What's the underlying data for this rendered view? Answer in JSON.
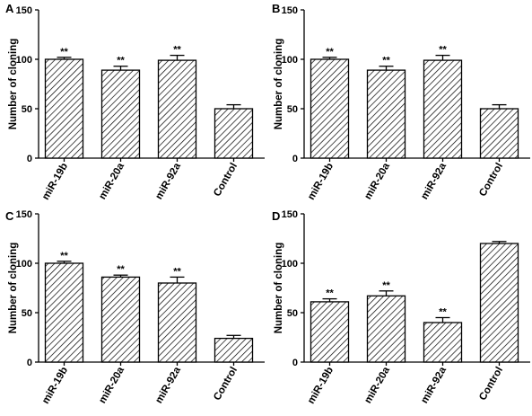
{
  "chart_data": [
    {
      "type": "bar",
      "panel": "A",
      "ylabel": "Number of cloning",
      "ylim": [
        0,
        150
      ],
      "yticks": [
        0,
        50,
        100,
        150
      ],
      "categories": [
        "miR-19b",
        "miR-20a",
        "miR-92a",
        "Control"
      ],
      "values": [
        100,
        89,
        99,
        50
      ],
      "errors": [
        2,
        4,
        5,
        4
      ],
      "significance": [
        "**",
        "**",
        "**",
        ""
      ]
    },
    {
      "type": "bar",
      "panel": "B",
      "ylabel": "Number of cloning",
      "ylim": [
        0,
        150
      ],
      "yticks": [
        0,
        50,
        100,
        150
      ],
      "categories": [
        "miR-19b",
        "miR-20a",
        "miR-92a",
        "Control"
      ],
      "values": [
        100,
        89,
        99,
        50
      ],
      "errors": [
        2,
        4,
        5,
        4
      ],
      "significance": [
        "**",
        "**",
        "**",
        ""
      ]
    },
    {
      "type": "bar",
      "panel": "C",
      "ylabel": "Number of cloning",
      "ylim": [
        0,
        150
      ],
      "yticks": [
        0,
        50,
        100,
        150
      ],
      "categories": [
        "miR-19b",
        "miR-20a",
        "miR-92a",
        "Control"
      ],
      "values": [
        100,
        86,
        80,
        24
      ],
      "errors": [
        2,
        2,
        6,
        3
      ],
      "significance": [
        "**",
        "**",
        "**",
        ""
      ]
    },
    {
      "type": "bar",
      "panel": "D",
      "ylabel": "Number of cloning",
      "ylim": [
        0,
        150
      ],
      "yticks": [
        0,
        50,
        100,
        150
      ],
      "categories": [
        "miR-19b",
        "miR-20a",
        "miR-92a",
        "Control"
      ],
      "values": [
        61,
        67,
        40,
        120
      ],
      "errors": [
        3,
        5,
        5,
        2
      ],
      "significance": [
        "**",
        "**",
        "**",
        ""
      ]
    }
  ]
}
